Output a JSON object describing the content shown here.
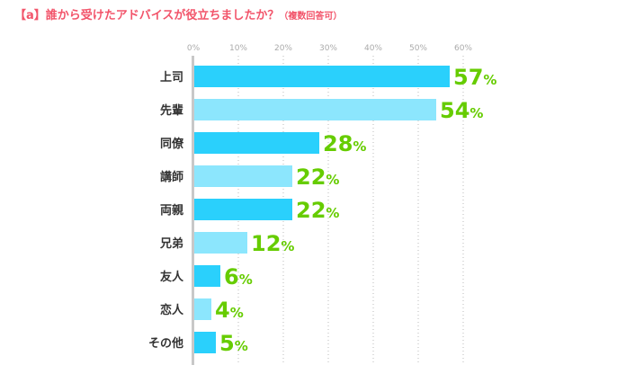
{
  "chart_data": {
    "type": "bar",
    "orientation": "horizontal",
    "title": "【a】誰から受けたアドバイスが役立ちましたか？",
    "subtitle": "（複数回答可）",
    "categories": [
      "上司",
      "先輩",
      "同僚",
      "講師",
      "両親",
      "兄弟",
      "友人",
      "恋人",
      "その他"
    ],
    "values": [
      57,
      54,
      28,
      22,
      22,
      12,
      6,
      4,
      5
    ],
    "value_suffix": "%",
    "xlim": [
      0,
      60
    ],
    "xticks": [
      0,
      10,
      20,
      30,
      40,
      50,
      60
    ],
    "xtick_labels": [
      "0%",
      "10%",
      "20%",
      "30%",
      "40%",
      "50%",
      "60%"
    ],
    "grid": true,
    "colors": {
      "bar_dark": "#2ad0fc",
      "bar_light": "#8ce6fd",
      "label": "#66cc00",
      "title": "#f2546a",
      "axis": "#c8c8c8",
      "tick": "#aaaaaa"
    }
  }
}
